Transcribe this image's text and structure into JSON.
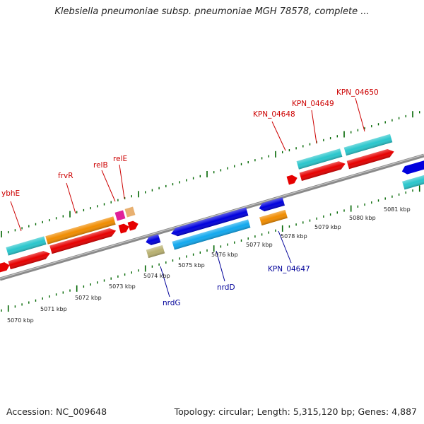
{
  "title": "Klebsiella pneumoniae subsp. pneumoniae MGH 78578, complete ...",
  "footer": {
    "accession": "Accession: NC_009648",
    "summary": "Topology: circular; Length: 5,315,120 bp; Genes: 4,887"
  },
  "ruler_labels": [
    "5070 kbp",
    "5071 kbp",
    "5072 kbp",
    "5073 kbp",
    "5074 kbp",
    "5075 kbp",
    "5076 kbp",
    "5077 kbp",
    "5078 kbp",
    "5079 kbp",
    "5080 kbp",
    "5081 kbp"
  ],
  "gene_labels_top": [
    "ybhE",
    "frvR",
    "relB",
    "relE",
    "KPN_04648",
    "KPN_04649",
    "KPN_04650"
  ],
  "gene_labels_bottom": [
    "nrdG",
    "nrdD",
    "KPN_04647"
  ],
  "colors": {
    "label_top": "#cc0000",
    "label_bottom": "#000099",
    "tick": "#006600",
    "backbone": "#888888",
    "gene_cyan": "#29c6cc",
    "gene_red": "#e60000",
    "gene_orange": "#f08c00",
    "gene_blue": "#0000dd",
    "gene_lightblue": "#12a8ee",
    "gene_khaki": "#b8b070",
    "gene_magenta": "#e0209a",
    "gene_peach": "#e8b070"
  }
}
